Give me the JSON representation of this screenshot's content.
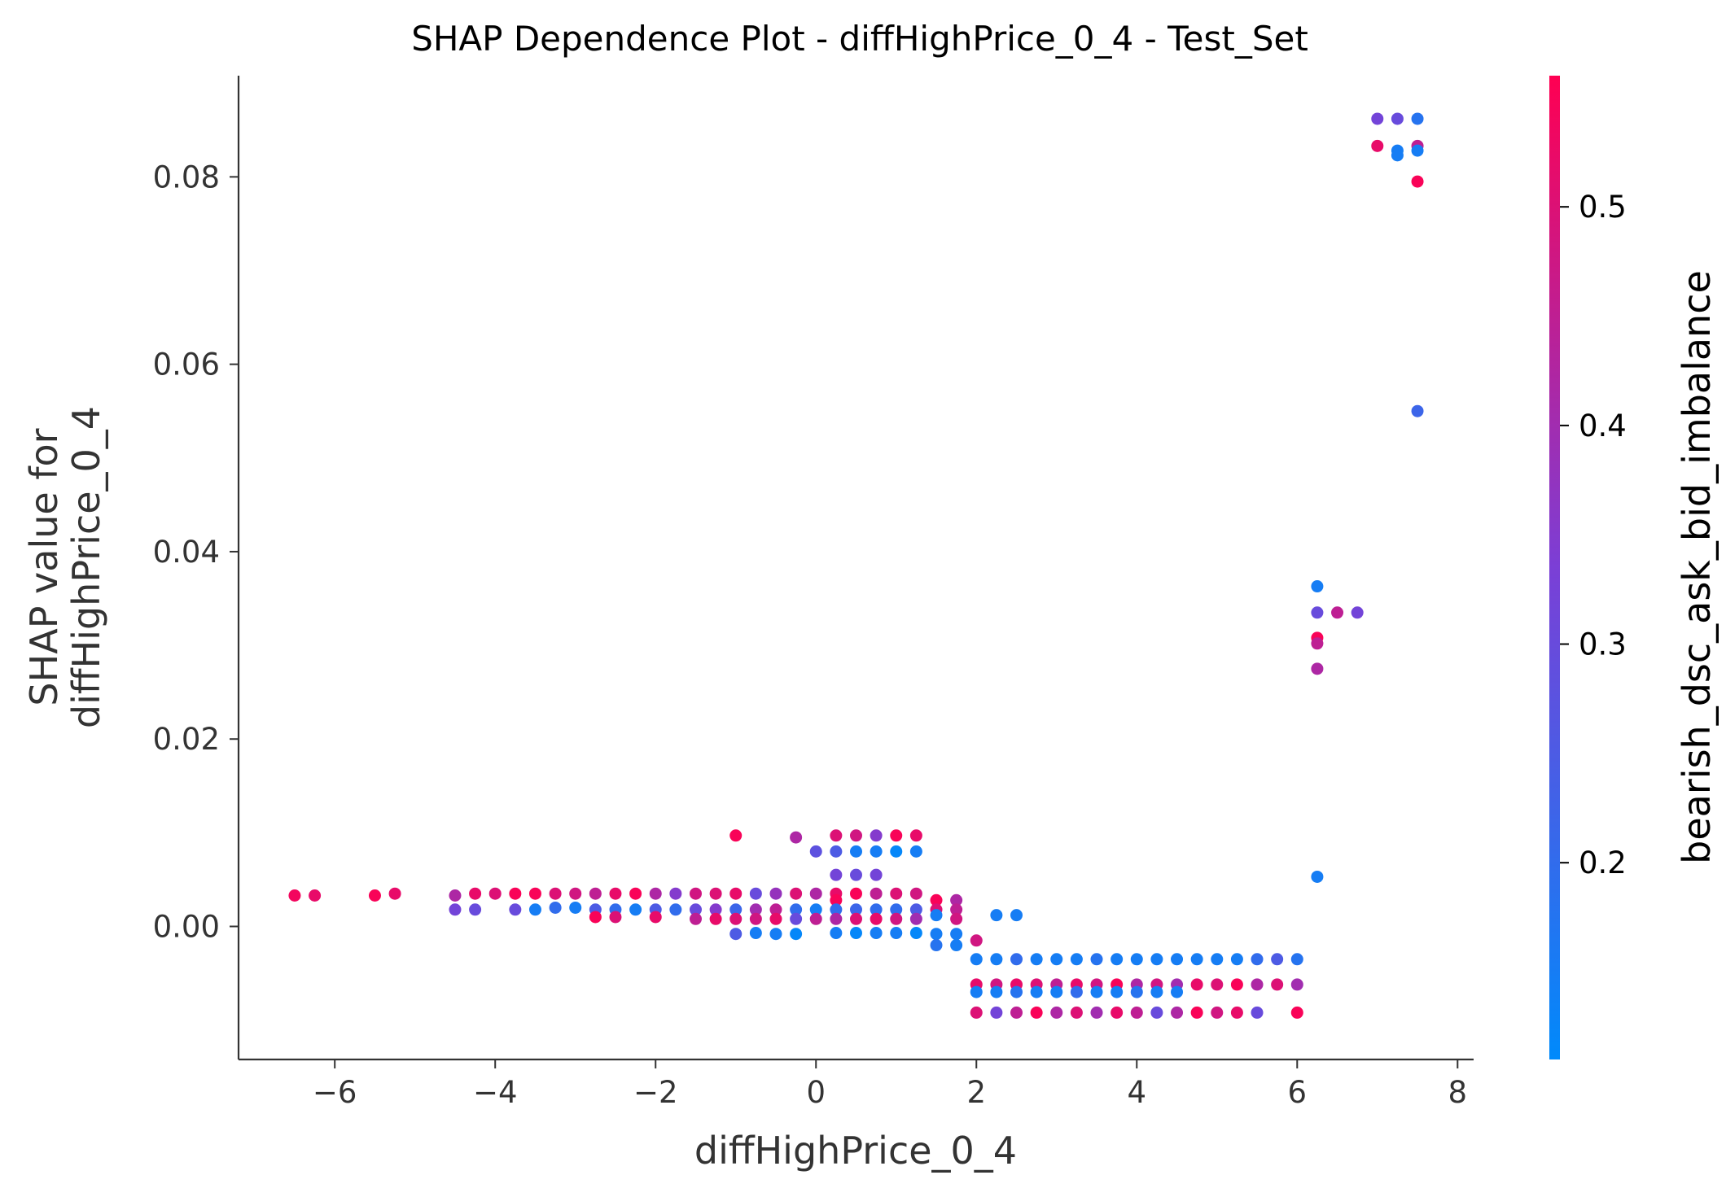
{
  "chart_data": {
    "type": "scatter",
    "title": "SHAP Dependence Plot - diffHighPrice_0_4 - Test_Set",
    "xlabel": "diffHighPrice_0_4",
    "ylabel": [
      "SHAP value for",
      "diffHighPrice_0_4"
    ],
    "xlim": [
      -7.2,
      8.2
    ],
    "ylim": [
      -0.0142,
      0.0908
    ],
    "x_ticks": [
      -6,
      -4,
      -2,
      0,
      2,
      4,
      6,
      8
    ],
    "x_tick_labels": [
      "−6",
      "−4",
      "−2",
      "0",
      "2",
      "4",
      "6",
      "8"
    ],
    "y_ticks": [
      0.0,
      0.02,
      0.04,
      0.06,
      0.08
    ],
    "y_tick_labels": [
      "0.00",
      "0.02",
      "0.04",
      "0.06",
      "0.08"
    ],
    "grid": false,
    "colorbar": {
      "label": "bearish_dsc_ask_bid_imbalance",
      "range": [
        0.11,
        0.56
      ],
      "ticks": [
        0.2,
        0.3,
        0.4,
        0.5
      ],
      "tick_labels": [
        "0.2",
        "0.3",
        "0.4",
        "0.5"
      ],
      "colors": [
        "#008afb",
        "#7b3fd6",
        "#ff0052"
      ]
    },
    "points": [
      [
        -6.5,
        0.0033,
        0.54
      ],
      [
        -6.25,
        0.0033,
        0.52
      ],
      [
        -5.5,
        0.0033,
        0.55
      ],
      [
        -5.25,
        0.0035,
        0.52
      ],
      [
        -4.5,
        0.0033,
        0.42
      ],
      [
        -4.5,
        0.0018,
        0.32
      ],
      [
        -4.25,
        0.0035,
        0.52
      ],
      [
        -4.25,
        0.0018,
        0.3
      ],
      [
        -4.0,
        0.0035,
        0.5
      ],
      [
        -3.75,
        0.0035,
        0.55
      ],
      [
        -3.75,
        0.0018,
        0.3
      ],
      [
        -3.5,
        0.0035,
        0.55
      ],
      [
        -3.5,
        0.0018,
        0.15
      ],
      [
        -3.25,
        0.0035,
        0.5
      ],
      [
        -3.25,
        0.002,
        0.2
      ],
      [
        -3.0,
        0.0035,
        0.48
      ],
      [
        -3.0,
        0.002,
        0.15
      ],
      [
        -2.75,
        0.0035,
        0.45
      ],
      [
        -2.75,
        0.0018,
        0.25
      ],
      [
        -2.75,
        0.001,
        0.55
      ],
      [
        -2.5,
        0.0035,
        0.52
      ],
      [
        -2.5,
        0.0018,
        0.2
      ],
      [
        -2.5,
        0.001,
        0.5
      ],
      [
        -2.25,
        0.0035,
        0.55
      ],
      [
        -2.25,
        0.0018,
        0.15
      ],
      [
        -2.0,
        0.0035,
        0.42
      ],
      [
        -2.0,
        0.0018,
        0.25
      ],
      [
        -2.0,
        0.001,
        0.52
      ],
      [
        -1.75,
        0.0035,
        0.35
      ],
      [
        -1.75,
        0.0018,
        0.2
      ],
      [
        -1.5,
        0.0035,
        0.48
      ],
      [
        -1.5,
        0.0018,
        0.3
      ],
      [
        -1.5,
        0.0008,
        0.45
      ],
      [
        -1.25,
        0.0035,
        0.5
      ],
      [
        -1.25,
        0.0018,
        0.35
      ],
      [
        -1.25,
        0.0008,
        0.52
      ],
      [
        -1.0,
        0.0097,
        0.55
      ],
      [
        -1.0,
        0.0035,
        0.52
      ],
      [
        -1.0,
        0.0018,
        0.22
      ],
      [
        -1.0,
        0.0008,
        0.5
      ],
      [
        -1.0,
        -0.0008,
        0.25
      ],
      [
        -0.75,
        0.0035,
        0.3
      ],
      [
        -0.75,
        0.0018,
        0.4
      ],
      [
        -0.75,
        0.0008,
        0.48
      ],
      [
        -0.75,
        -0.0007,
        0.15
      ],
      [
        -0.5,
        0.0035,
        0.38
      ],
      [
        -0.5,
        0.0018,
        0.45
      ],
      [
        -0.5,
        0.0008,
        0.52
      ],
      [
        -0.5,
        -0.0008,
        0.15
      ],
      [
        -0.25,
        0.0095,
        0.42
      ],
      [
        -0.25,
        0.0035,
        0.5
      ],
      [
        -0.25,
        0.0018,
        0.2
      ],
      [
        -0.25,
        0.0008,
        0.3
      ],
      [
        -0.25,
        -0.0008,
        0.12
      ],
      [
        0.0,
        0.008,
        0.28
      ],
      [
        0.0,
        0.0035,
        0.42
      ],
      [
        0.0,
        0.0018,
        0.15
      ],
      [
        0.0,
        0.0008,
        0.45
      ],
      [
        0.25,
        0.0097,
        0.5
      ],
      [
        0.25,
        0.008,
        0.25
      ],
      [
        0.25,
        0.0055,
        0.32
      ],
      [
        0.25,
        0.0035,
        0.52
      ],
      [
        0.25,
        0.0028,
        0.55
      ],
      [
        0.25,
        0.0018,
        0.2
      ],
      [
        0.25,
        0.0008,
        0.42
      ],
      [
        0.25,
        -0.0007,
        0.15
      ],
      [
        0.5,
        0.0097,
        0.48
      ],
      [
        0.5,
        0.008,
        0.15
      ],
      [
        0.5,
        0.0055,
        0.3
      ],
      [
        0.5,
        0.0035,
        0.55
      ],
      [
        0.5,
        0.0018,
        0.22
      ],
      [
        0.5,
        0.0008,
        0.5
      ],
      [
        0.5,
        -0.0007,
        0.12
      ],
      [
        0.75,
        0.0097,
        0.35
      ],
      [
        0.75,
        0.008,
        0.15
      ],
      [
        0.75,
        0.0055,
        0.32
      ],
      [
        0.75,
        0.0035,
        0.45
      ],
      [
        0.75,
        0.0018,
        0.2
      ],
      [
        0.75,
        0.0008,
        0.52
      ],
      [
        0.75,
        -0.0007,
        0.15
      ],
      [
        1.0,
        0.0097,
        0.55
      ],
      [
        1.0,
        0.008,
        0.12
      ],
      [
        1.0,
        0.0035,
        0.5
      ],
      [
        1.0,
        0.0018,
        0.2
      ],
      [
        1.0,
        0.0008,
        0.48
      ],
      [
        1.0,
        -0.0007,
        0.15
      ],
      [
        1.25,
        0.0097,
        0.52
      ],
      [
        1.25,
        0.008,
        0.15
      ],
      [
        1.25,
        0.0035,
        0.48
      ],
      [
        1.25,
        0.0018,
        0.25
      ],
      [
        1.25,
        0.0008,
        0.4
      ],
      [
        1.25,
        -0.0007,
        0.12
      ],
      [
        1.5,
        0.0028,
        0.55
      ],
      [
        1.5,
        0.0018,
        0.5
      ],
      [
        1.5,
        0.0012,
        0.15
      ],
      [
        1.5,
        -0.0008,
        0.15
      ],
      [
        1.5,
        -0.002,
        0.18
      ],
      [
        1.75,
        0.0028,
        0.42
      ],
      [
        1.75,
        0.0018,
        0.45
      ],
      [
        1.75,
        0.0008,
        0.48
      ],
      [
        1.75,
        -0.0008,
        0.15
      ],
      [
        1.75,
        -0.002,
        0.15
      ],
      [
        2.0,
        -0.0015,
        0.48
      ],
      [
        2.0,
        -0.0035,
        0.15
      ],
      [
        2.0,
        -0.0062,
        0.52
      ],
      [
        2.0,
        -0.007,
        0.15
      ],
      [
        2.0,
        -0.0092,
        0.5
      ],
      [
        2.25,
        0.0012,
        0.15
      ],
      [
        2.25,
        -0.0035,
        0.15
      ],
      [
        2.25,
        -0.0062,
        0.48
      ],
      [
        2.25,
        -0.007,
        0.15
      ],
      [
        2.25,
        -0.0092,
        0.32
      ],
      [
        2.5,
        0.0012,
        0.15
      ],
      [
        2.5,
        -0.0035,
        0.2
      ],
      [
        2.5,
        -0.0062,
        0.52
      ],
      [
        2.5,
        -0.007,
        0.18
      ],
      [
        2.5,
        -0.0092,
        0.45
      ],
      [
        2.75,
        -0.0035,
        0.15
      ],
      [
        2.75,
        -0.0062,
        0.5
      ],
      [
        2.75,
        -0.007,
        0.15
      ],
      [
        2.75,
        -0.0092,
        0.55
      ],
      [
        3.0,
        -0.0035,
        0.15
      ],
      [
        3.0,
        -0.0062,
        0.45
      ],
      [
        3.0,
        -0.007,
        0.15
      ],
      [
        3.0,
        -0.0092,
        0.42
      ],
      [
        3.25,
        -0.0035,
        0.15
      ],
      [
        3.25,
        -0.0062,
        0.52
      ],
      [
        3.25,
        -0.007,
        0.2
      ],
      [
        3.25,
        -0.0092,
        0.5
      ],
      [
        3.5,
        -0.0035,
        0.18
      ],
      [
        3.5,
        -0.0062,
        0.48
      ],
      [
        3.5,
        -0.007,
        0.15
      ],
      [
        3.5,
        -0.0092,
        0.4
      ],
      [
        3.75,
        -0.0035,
        0.15
      ],
      [
        3.75,
        -0.0062,
        0.55
      ],
      [
        3.75,
        -0.007,
        0.15
      ],
      [
        3.75,
        -0.0092,
        0.52
      ],
      [
        4.0,
        -0.0035,
        0.15
      ],
      [
        4.0,
        -0.0062,
        0.42
      ],
      [
        4.0,
        -0.007,
        0.18
      ],
      [
        4.0,
        -0.0092,
        0.45
      ],
      [
        4.25,
        -0.0035,
        0.15
      ],
      [
        4.25,
        -0.0062,
        0.48
      ],
      [
        4.25,
        -0.007,
        0.15
      ],
      [
        4.25,
        -0.0092,
        0.3
      ],
      [
        4.5,
        -0.0035,
        0.15
      ],
      [
        4.5,
        -0.0062,
        0.4
      ],
      [
        4.5,
        -0.007,
        0.15
      ],
      [
        4.5,
        -0.0092,
        0.42
      ],
      [
        4.75,
        -0.0035,
        0.15
      ],
      [
        4.75,
        -0.0062,
        0.52
      ],
      [
        4.75,
        -0.0092,
        0.55
      ],
      [
        5.0,
        -0.0035,
        0.15
      ],
      [
        5.0,
        -0.0062,
        0.5
      ],
      [
        5.0,
        -0.0092,
        0.48
      ],
      [
        5.25,
        -0.0035,
        0.15
      ],
      [
        5.25,
        -0.0062,
        0.55
      ],
      [
        5.25,
        -0.0092,
        0.52
      ],
      [
        5.5,
        -0.0035,
        0.2
      ],
      [
        5.5,
        -0.0062,
        0.42
      ],
      [
        5.5,
        -0.0092,
        0.3
      ],
      [
        5.75,
        -0.0035,
        0.25
      ],
      [
        5.75,
        -0.0062,
        0.5
      ],
      [
        6.0,
        -0.0035,
        0.18
      ],
      [
        6.0,
        -0.0062,
        0.4
      ],
      [
        6.0,
        -0.0092,
        0.55
      ],
      [
        6.25,
        0.0363,
        0.15
      ],
      [
        6.25,
        0.0335,
        0.3
      ],
      [
        6.25,
        0.0308,
        0.55
      ],
      [
        6.25,
        0.0302,
        0.45
      ],
      [
        6.25,
        0.0275,
        0.42
      ],
      [
        6.25,
        0.0053,
        0.15
      ],
      [
        6.5,
        0.0335,
        0.45
      ],
      [
        6.75,
        0.0335,
        0.32
      ],
      [
        7.0,
        0.0862,
        0.32
      ],
      [
        7.0,
        0.0833,
        0.52
      ],
      [
        7.25,
        0.0862,
        0.3
      ],
      [
        7.25,
        0.0828,
        0.15
      ],
      [
        7.25,
        0.0823,
        0.15
      ],
      [
        7.5,
        0.0862,
        0.18
      ],
      [
        7.5,
        0.0833,
        0.45
      ],
      [
        7.5,
        0.0828,
        0.15
      ],
      [
        7.5,
        0.0795,
        0.55
      ],
      [
        7.5,
        0.055,
        0.22
      ]
    ]
  }
}
